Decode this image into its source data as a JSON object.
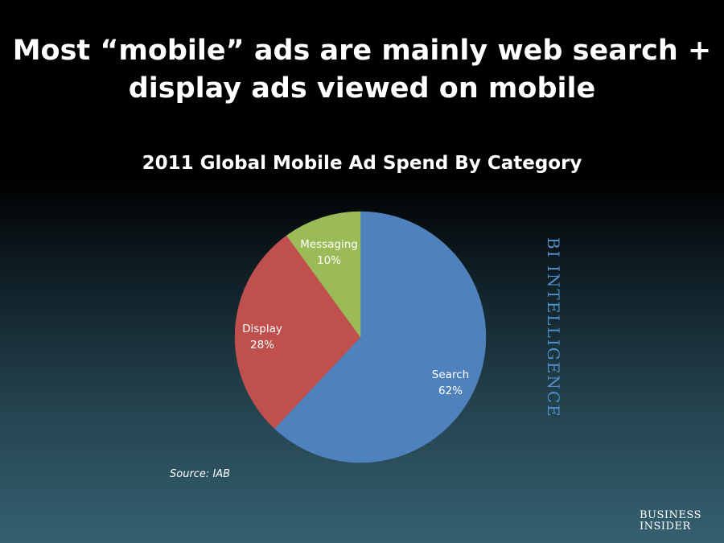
{
  "headline": {
    "line1": "Most “mobile” ads are mainly web search +",
    "line2": "display ads viewed on mobile"
  },
  "source": "Source:  IAB",
  "watermark": "BI INTELLIGENCE",
  "logo": {
    "line1": "BUSINESS",
    "line2": "INSIDER"
  },
  "chart_data": {
    "type": "pie",
    "title": "2011 Global Mobile Ad Spend By Category",
    "slices": [
      {
        "label": "Search",
        "value": 62,
        "value_label": "62%",
        "color": "#4f81bd"
      },
      {
        "label": "Display",
        "value": 28,
        "value_label": "28%",
        "color": "#c0504d"
      },
      {
        "label": "Messaging",
        "value": 10,
        "value_label": "10%",
        "color": "#9bbb59"
      }
    ],
    "start": "12 o'clock",
    "direction": "clockwise",
    "legend": "none (labels on slices)"
  }
}
